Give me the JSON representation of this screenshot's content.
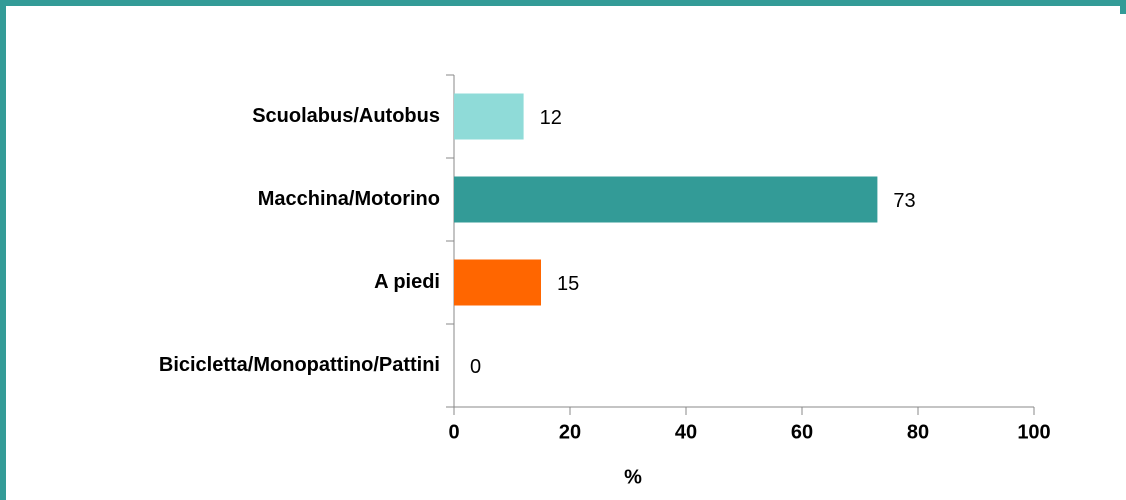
{
  "chart_data": {
    "type": "bar",
    "orientation": "horizontal",
    "categories": [
      "Scuolabus/Autobus",
      "Macchina/Motorino",
      "A piedi",
      "Bicicletta/Monopattino/Pattini"
    ],
    "values": [
      12,
      73,
      15,
      0
    ],
    "colors": [
      "#8fdbd8",
      "#339b97",
      "#ff6600",
      "#8fdbd8"
    ],
    "xlabel": "%",
    "xlim": [
      0,
      100
    ],
    "xticks": [
      0,
      20,
      40,
      60,
      80,
      100
    ]
  }
}
